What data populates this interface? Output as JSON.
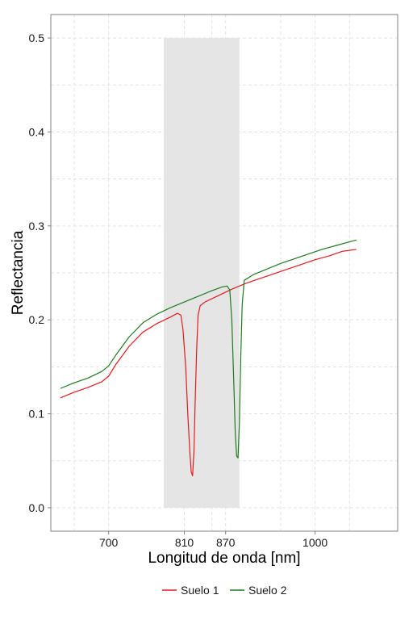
{
  "chart_data": {
    "type": "line",
    "title": "",
    "xlabel": "Longitud de onda [nm]",
    "ylabel": "Reflectancia",
    "xlim": [
      616,
      1120
    ],
    "ylim": [
      -0.025,
      0.525
    ],
    "xticks": [
      700,
      810,
      870,
      1000
    ],
    "xtick_labels": [
      "700",
      "810",
      "870",
      "1000"
    ],
    "yticks": [
      0.0,
      0.1,
      0.2,
      0.3,
      0.4,
      0.5
    ],
    "ytick_labels": [
      "0.0",
      "0.1",
      "0.2",
      "0.3",
      "0.4",
      "0.5"
    ],
    "x_minor_gridlines": [
      650,
      850,
      950,
      1050
    ],
    "y_minor_gridlines": [
      0.05,
      0.15,
      0.25,
      0.35,
      0.45
    ],
    "grid": true,
    "legend_position": "bottom",
    "shaded_region": {
      "x": [
        780,
        890
      ],
      "y": [
        0.0,
        0.5
      ],
      "color": "#e5e5e5"
    },
    "series": [
      {
        "name": "Suelo 1",
        "color": "#e31a1c",
        "points": [
          [
            630,
            0.117
          ],
          [
            650,
            0.123
          ],
          [
            670,
            0.128
          ],
          [
            690,
            0.134
          ],
          [
            700,
            0.14
          ],
          [
            710,
            0.152
          ],
          [
            730,
            0.172
          ],
          [
            750,
            0.187
          ],
          [
            770,
            0.196
          ],
          [
            790,
            0.203
          ],
          [
            800,
            0.207
          ],
          [
            805,
            0.205
          ],
          [
            808,
            0.19
          ],
          [
            812,
            0.15
          ],
          [
            815,
            0.1
          ],
          [
            818,
            0.06
          ],
          [
            820,
            0.038
          ],
          [
            822,
            0.034
          ],
          [
            824,
            0.06
          ],
          [
            826,
            0.12
          ],
          [
            828,
            0.17
          ],
          [
            830,
            0.205
          ],
          [
            833,
            0.215
          ],
          [
            840,
            0.219
          ],
          [
            860,
            0.226
          ],
          [
            880,
            0.233
          ],
          [
            900,
            0.239
          ],
          [
            920,
            0.244
          ],
          [
            940,
            0.249
          ],
          [
            960,
            0.254
          ],
          [
            980,
            0.259
          ],
          [
            1000,
            0.264
          ],
          [
            1020,
            0.268
          ],
          [
            1040,
            0.273
          ],
          [
            1060,
            0.275
          ]
        ]
      },
      {
        "name": "Suelo 2",
        "color": "#1f7a1f",
        "points": [
          [
            630,
            0.127
          ],
          [
            650,
            0.133
          ],
          [
            670,
            0.138
          ],
          [
            690,
            0.145
          ],
          [
            700,
            0.151
          ],
          [
            710,
            0.162
          ],
          [
            730,
            0.182
          ],
          [
            750,
            0.197
          ],
          [
            770,
            0.206
          ],
          [
            790,
            0.213
          ],
          [
            810,
            0.219
          ],
          [
            830,
            0.225
          ],
          [
            850,
            0.231
          ],
          [
            865,
            0.235
          ],
          [
            872,
            0.236
          ],
          [
            876,
            0.232
          ],
          [
            879,
            0.2
          ],
          [
            882,
            0.13
          ],
          [
            884,
            0.08
          ],
          [
            886,
            0.055
          ],
          [
            888,
            0.053
          ],
          [
            890,
            0.09
          ],
          [
            892,
            0.16
          ],
          [
            894,
            0.215
          ],
          [
            897,
            0.242
          ],
          [
            910,
            0.248
          ],
          [
            930,
            0.254
          ],
          [
            950,
            0.26
          ],
          [
            970,
            0.265
          ],
          [
            990,
            0.27
          ],
          [
            1010,
            0.275
          ],
          [
            1030,
            0.279
          ],
          [
            1050,
            0.283
          ],
          [
            1060,
            0.285
          ]
        ]
      }
    ]
  }
}
